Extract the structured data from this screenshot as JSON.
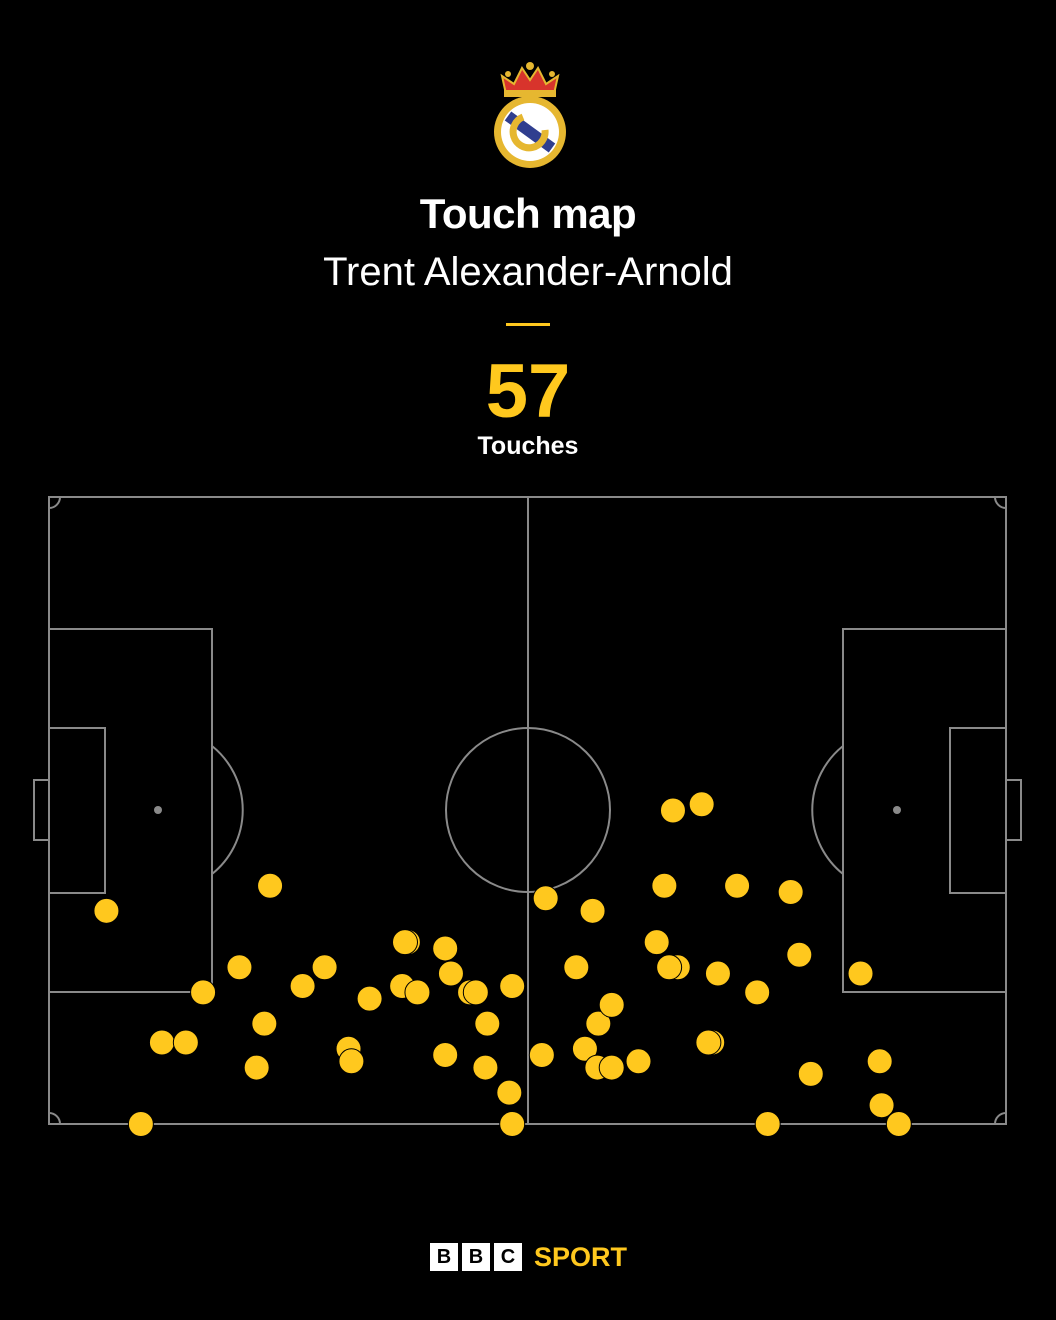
{
  "title": "Touch map",
  "subtitle": "Trent Alexander-Arnold",
  "stat": {
    "value": "57",
    "label": "Touches"
  },
  "colors": {
    "accent": "#FFC81E",
    "pitch_lines": "#8a8a8a",
    "background": "#000000"
  },
  "crest": {
    "icon": "real-madrid-crest-icon"
  },
  "brand": {
    "letters": [
      "B",
      "B",
      "C"
    ],
    "label": "SPORT"
  },
  "chart_data": {
    "type": "scatter",
    "title": "Touch map",
    "subtitle": "Trent Alexander-Arnold",
    "xlabel": "",
    "ylabel": "",
    "xlim": [
      0,
      100
    ],
    "ylim": [
      0,
      100
    ],
    "grid": false,
    "series": [
      {
        "values": [
          {
            "x": 6.0,
            "y": 34
          },
          {
            "x": 23.1,
            "y": 38
          },
          {
            "x": 19.9,
            "y": 25
          },
          {
            "x": 16.1,
            "y": 21
          },
          {
            "x": 11.8,
            "y": 13
          },
          {
            "x": 14.3,
            "y": 13
          },
          {
            "x": 22.5,
            "y": 16
          },
          {
            "x": 21.7,
            "y": 9
          },
          {
            "x": 9.6,
            "y": 0
          },
          {
            "x": 26.5,
            "y": 22
          },
          {
            "x": 28.8,
            "y": 25
          },
          {
            "x": 33.5,
            "y": 20
          },
          {
            "x": 31.3,
            "y": 12
          },
          {
            "x": 31.6,
            "y": 10
          },
          {
            "x": 37.5,
            "y": 29
          },
          {
            "x": 37.2,
            "y": 29
          },
          {
            "x": 41.4,
            "y": 28
          },
          {
            "x": 42.0,
            "y": 24
          },
          {
            "x": 36.9,
            "y": 22
          },
          {
            "x": 38.5,
            "y": 21
          },
          {
            "x": 44.0,
            "y": 21
          },
          {
            "x": 44.6,
            "y": 21
          },
          {
            "x": 45.8,
            "y": 16
          },
          {
            "x": 41.4,
            "y": 11
          },
          {
            "x": 45.6,
            "y": 9
          },
          {
            "x": 48.4,
            "y": 22
          },
          {
            "x": 48.1,
            "y": 5
          },
          {
            "x": 48.4,
            "y": 0
          },
          {
            "x": 51.9,
            "y": 36
          },
          {
            "x": 51.5,
            "y": 11
          },
          {
            "x": 55.1,
            "y": 25
          },
          {
            "x": 56.8,
            "y": 34
          },
          {
            "x": 56.0,
            "y": 12
          },
          {
            "x": 57.4,
            "y": 16
          },
          {
            "x": 58.8,
            "y": 19
          },
          {
            "x": 57.3,
            "y": 9
          },
          {
            "x": 58.8,
            "y": 9
          },
          {
            "x": 61.6,
            "y": 10
          },
          {
            "x": 65.2,
            "y": 50
          },
          {
            "x": 68.2,
            "y": 51
          },
          {
            "x": 64.3,
            "y": 38
          },
          {
            "x": 63.5,
            "y": 29
          },
          {
            "x": 65.7,
            "y": 25
          },
          {
            "x": 64.8,
            "y": 25
          },
          {
            "x": 69.9,
            "y": 24
          },
          {
            "x": 71.9,
            "y": 38
          },
          {
            "x": 69.3,
            "y": 13
          },
          {
            "x": 68.9,
            "y": 13
          },
          {
            "x": 74.0,
            "y": 21
          },
          {
            "x": 77.5,
            "y": 37
          },
          {
            "x": 78.4,
            "y": 27
          },
          {
            "x": 84.8,
            "y": 24
          },
          {
            "x": 79.6,
            "y": 8
          },
          {
            "x": 75.1,
            "y": 0
          },
          {
            "x": 86.8,
            "y": 10
          },
          {
            "x": 88.8,
            "y": 0
          },
          {
            "x": 87.0,
            "y": 3
          }
        ]
      }
    ]
  }
}
